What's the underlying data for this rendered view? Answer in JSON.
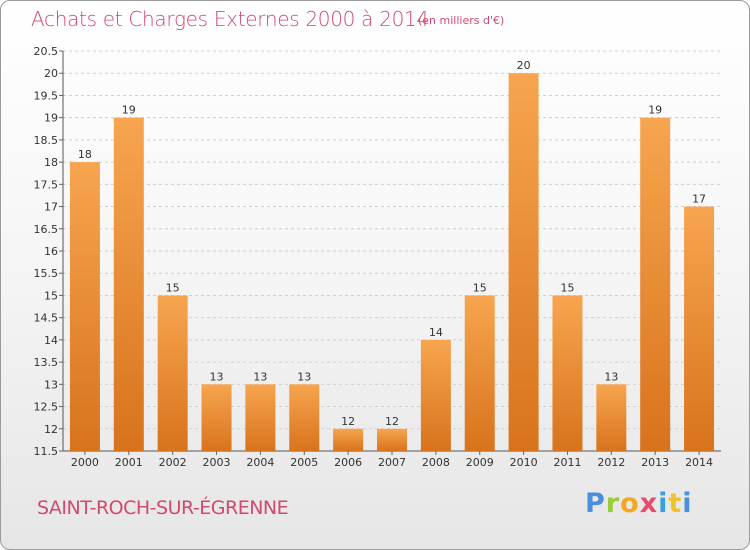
{
  "header": {
    "title": "Achats et Charges Externes 2000 à 2014",
    "subtitle": "(en milliers d'€)"
  },
  "footer": {
    "commune": "SAINT-ROCH-SUR-ÉGRENNE",
    "logo_text": "Proxiti"
  },
  "colors": {
    "bar_light": "#f7a54f",
    "bar_dark": "#d8731c",
    "title": "#d04a6e",
    "grid": "#cfcfcf"
  },
  "chart_data": {
    "type": "bar",
    "title": "Achats et Charges Externes 2000 à 2014",
    "subtitle": "(en milliers d'€)",
    "xlabel": "",
    "ylabel": "",
    "categories": [
      "2000",
      "2001",
      "2002",
      "2003",
      "2004",
      "2005",
      "2006",
      "2007",
      "2008",
      "2009",
      "2010",
      "2011",
      "2012",
      "2013",
      "2014"
    ],
    "values": [
      18,
      19,
      15,
      13,
      13,
      13,
      12,
      12,
      14,
      15,
      20,
      15,
      13,
      19,
      17
    ],
    "ylim": [
      11.5,
      20.5
    ],
    "yticks": [
      "11.5",
      "12",
      "12.5",
      "13",
      "13.5",
      "14",
      "14.5",
      "15",
      "15.5",
      "16",
      "16.5",
      "17",
      "17.5",
      "18",
      "18.5",
      "19",
      "19.5",
      "20",
      "20.5"
    ],
    "grid": true,
    "legend": "none"
  }
}
